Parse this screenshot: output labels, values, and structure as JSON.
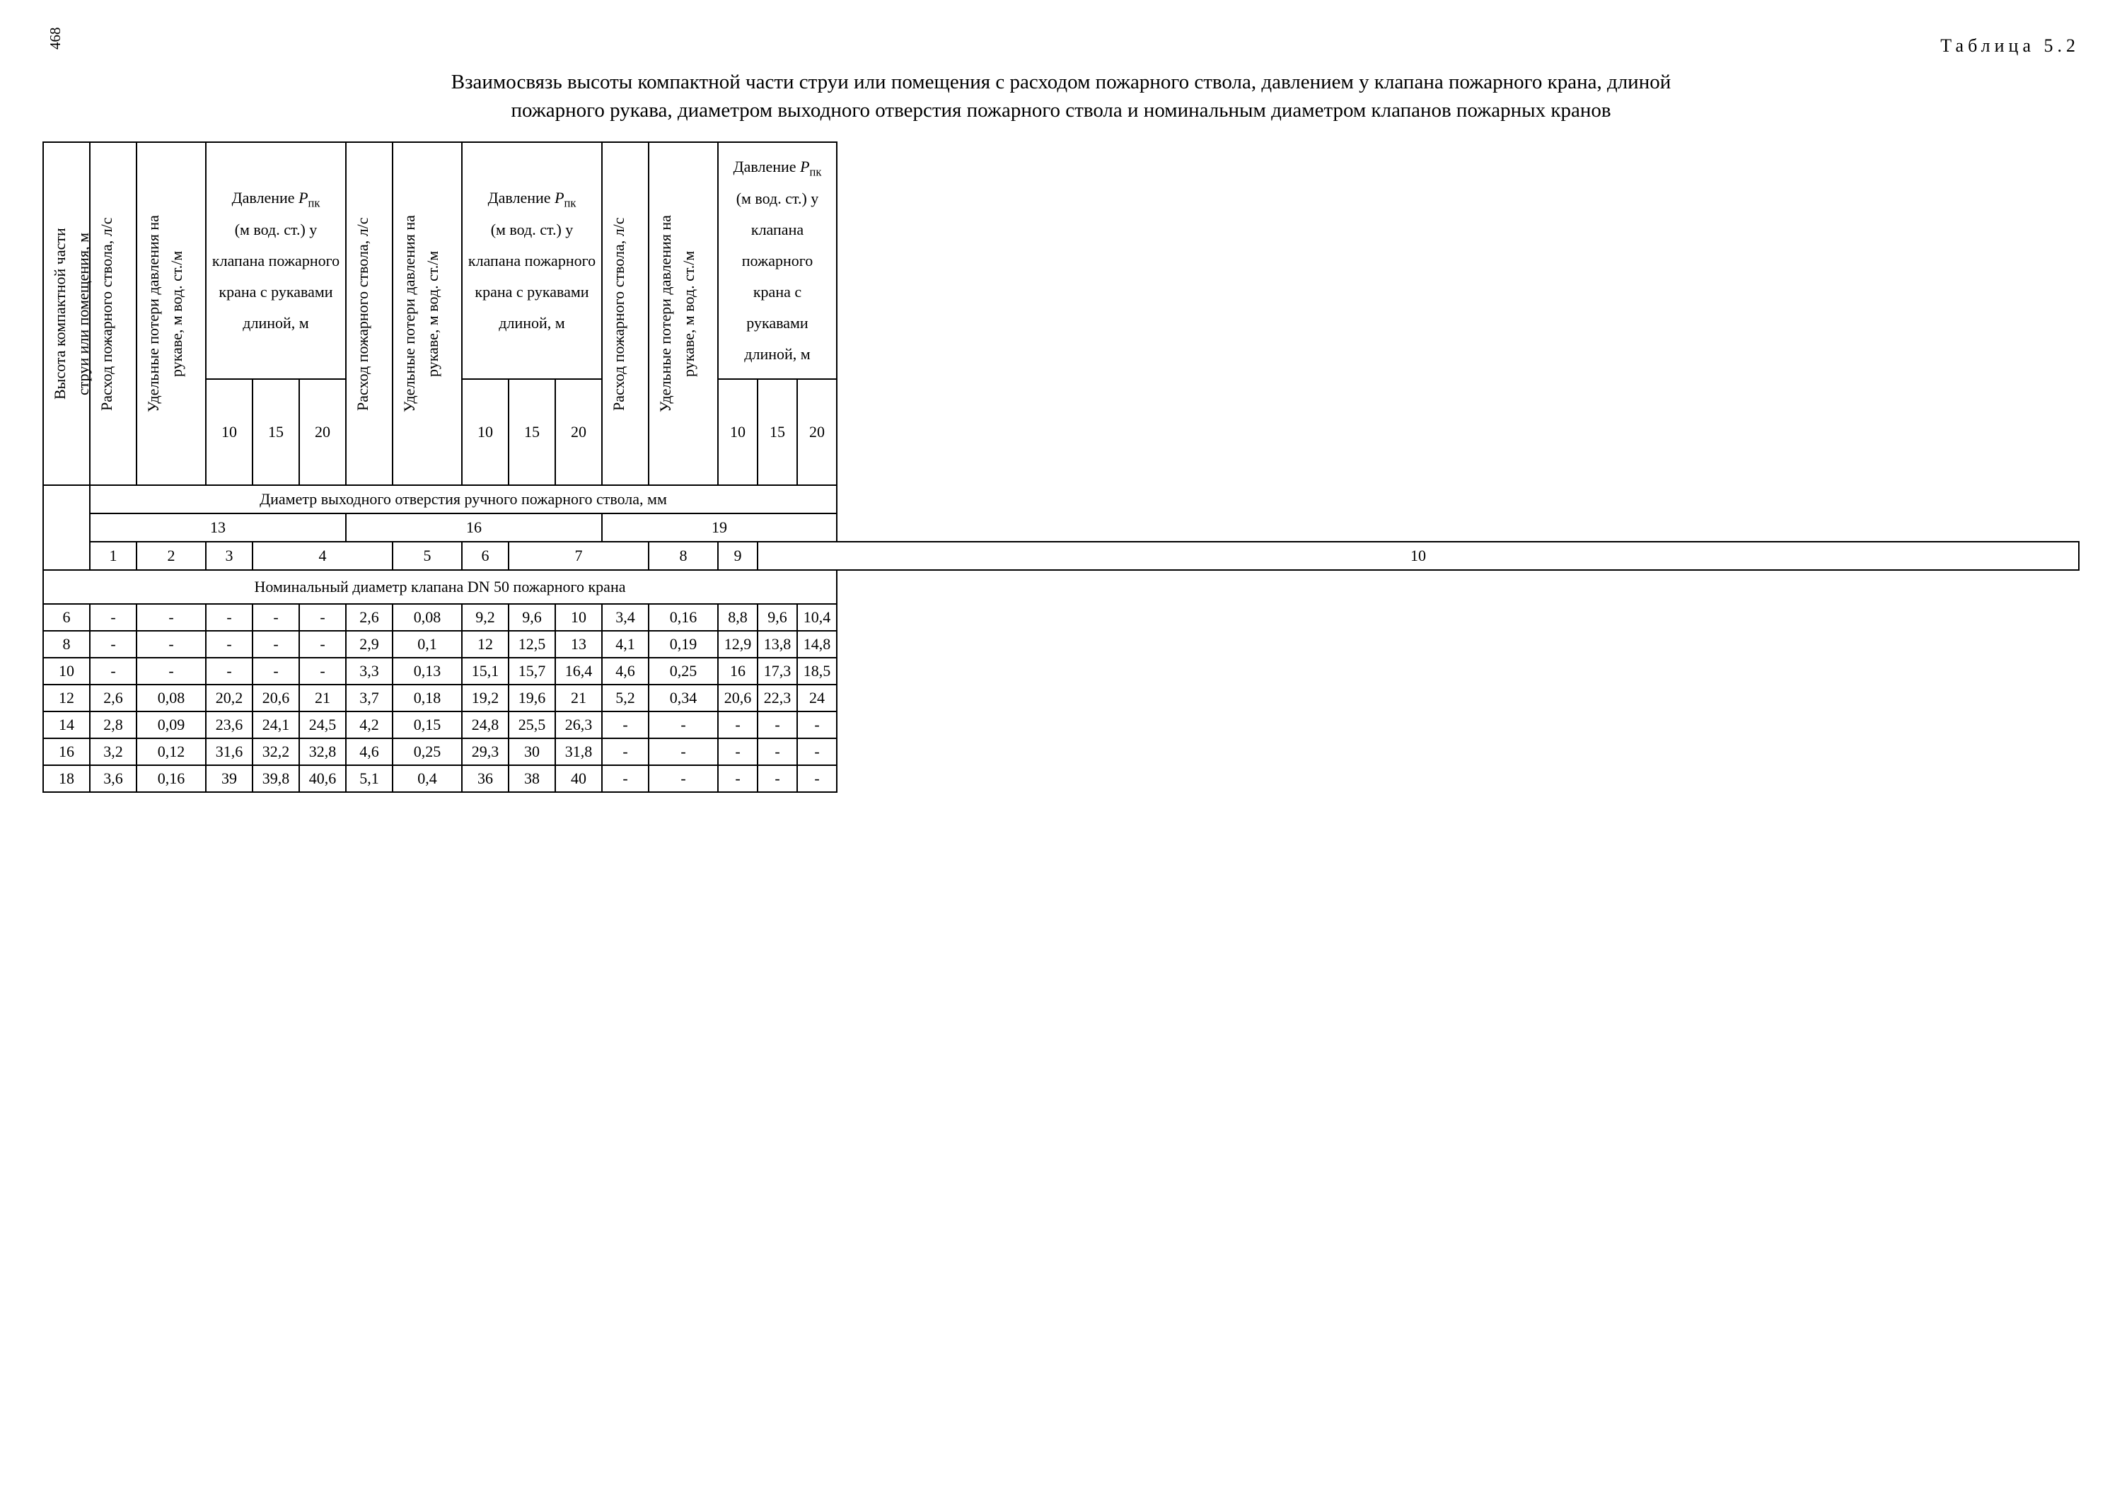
{
  "page_number": "468",
  "table_label": "Таблица 5.2",
  "title": "Взаимосвязь высоты компактной части струи или помещения с расходом пожарного ствола, давлением у клапана пожарного крана, длиной пожарного рукава, диаметром выходного отверстия пожарного ствола и номинальным диаметром клапанов пожарных кранов",
  "headers": {
    "height": "Высота компактной части струи или помещения, м",
    "flow": "Расход пожарного ствола, л/с",
    "loss": "Удельные потери давления на рукаве, м вод. ст./м",
    "pressure_pref": "Давление ",
    "pressure_var": "P",
    "pressure_sub": "пк",
    "pressure_rest": "(м вод. ст.) у клапана пожарного крана с рукавами длиной, м",
    "len10": "10",
    "len15": "15",
    "len20": "20",
    "diam_header": "Диаметр выходного отверстия ручного пожарного ствола, мм",
    "d13": "13",
    "d16": "16",
    "d19": "19",
    "c1": "1",
    "c2": "2",
    "c3": "3",
    "c4": "4",
    "c5": "5",
    "c6": "6",
    "c7": "7",
    "c8": "8",
    "c9": "9",
    "c10": "10",
    "section": "Номинальный диаметр клапана DN 50 пожарного крана"
  },
  "rows": [
    {
      "h": "6",
      "a": [
        "-",
        "-",
        "-",
        "-",
        "-"
      ],
      "b": [
        "2,6",
        "0,08",
        "9,2",
        "9,6",
        "10"
      ],
      "c": [
        "3,4",
        "0,16",
        "8,8",
        "9,6",
        "10,4"
      ]
    },
    {
      "h": "8",
      "a": [
        "-",
        "-",
        "-",
        "-",
        "-"
      ],
      "b": [
        "2,9",
        "0,1",
        "12",
        "12,5",
        "13"
      ],
      "c": [
        "4,1",
        "0,19",
        "12,9",
        "13,8",
        "14,8"
      ]
    },
    {
      "h": "10",
      "a": [
        "-",
        "-",
        "-",
        "-",
        "-"
      ],
      "b": [
        "3,3",
        "0,13",
        "15,1",
        "15,7",
        "16,4"
      ],
      "c": [
        "4,6",
        "0,25",
        "16",
        "17,3",
        "18,5"
      ]
    },
    {
      "h": "12",
      "a": [
        "2,6",
        "0,08",
        "20,2",
        "20,6",
        "21"
      ],
      "b": [
        "3,7",
        "0,18",
        "19,2",
        "19,6",
        "21"
      ],
      "c": [
        "5,2",
        "0,34",
        "20,6",
        "22,3",
        "24"
      ]
    },
    {
      "h": "14",
      "a": [
        "2,8",
        "0,09",
        "23,6",
        "24,1",
        "24,5"
      ],
      "b": [
        "4,2",
        "0,15",
        "24,8",
        "25,5",
        "26,3"
      ],
      "c": [
        "-",
        "-",
        "-",
        "-",
        "-"
      ]
    },
    {
      "h": "16",
      "a": [
        "3,2",
        "0,12",
        "31,6",
        "32,2",
        "32,8"
      ],
      "b": [
        "4,6",
        "0,25",
        "29,3",
        "30",
        "31,8"
      ],
      "c": [
        "-",
        "-",
        "-",
        "-",
        "-"
      ]
    },
    {
      "h": "18",
      "a": [
        "3,6",
        "0,16",
        "39",
        "39,8",
        "40,6"
      ],
      "b": [
        "5,1",
        "0,4",
        "36",
        "38",
        "40"
      ],
      "c": [
        "-",
        "-",
        "-",
        "-",
        "-"
      ]
    }
  ]
}
